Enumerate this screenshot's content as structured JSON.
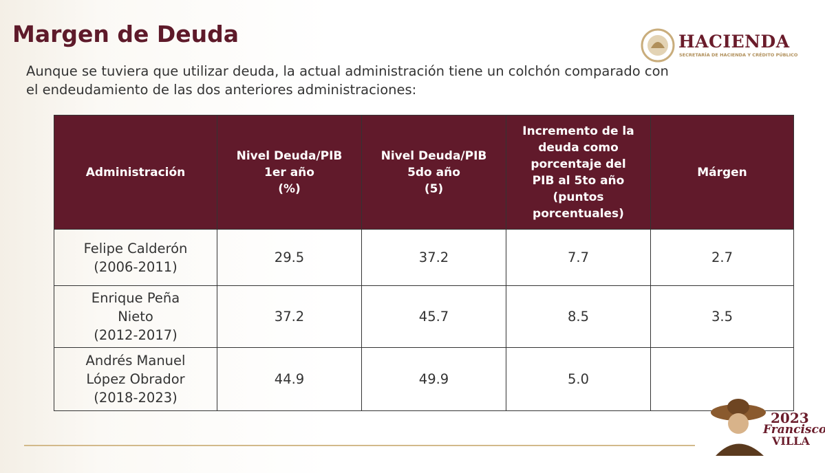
{
  "header": {
    "title": "Margen de Deuda",
    "subtitle": [
      "Aunque se tuviera que utilizar deuda, la actual administración tiene un colchón comparado con",
      "el endeudamiento de las dos anteriores administraciones:"
    ]
  },
  "logo": {
    "name": "HACIENDA",
    "subtitle": "SECRETARÍA DE HACIENDA Y CRÉDITO PÚBLICO"
  },
  "table": {
    "header": [
      [
        "Administración"
      ],
      [
        "Nivel Deuda/PIB",
        "1er año",
        "(%)"
      ],
      [
        "Nivel Deuda/PIB",
        "5do año",
        "(5)"
      ],
      [
        "Incremento de la",
        "deuda como",
        "porcentaje del",
        "PIB al 5to año",
        "(puntos",
        "porcentuales)"
      ],
      [
        "Márgen"
      ]
    ],
    "rows": [
      [
        [
          "Felipe Calderón",
          "(2006-2011)"
        ],
        "29.5",
        "37.2",
        "7.7",
        "2.7"
      ],
      [
        [
          "Enrique Peña",
          "Nieto",
          "(2012-2017)"
        ],
        "37.2",
        "45.7",
        "8.5",
        "3.5"
      ],
      [
        [
          "Andrés Manuel",
          "López Obrador",
          "(2018-2023)"
        ],
        "44.9",
        "49.9",
        "5.0"
      ]
    ]
  },
  "badge": {
    "year": "2023",
    "name": "Francisco",
    "surname": "VILLA"
  }
}
